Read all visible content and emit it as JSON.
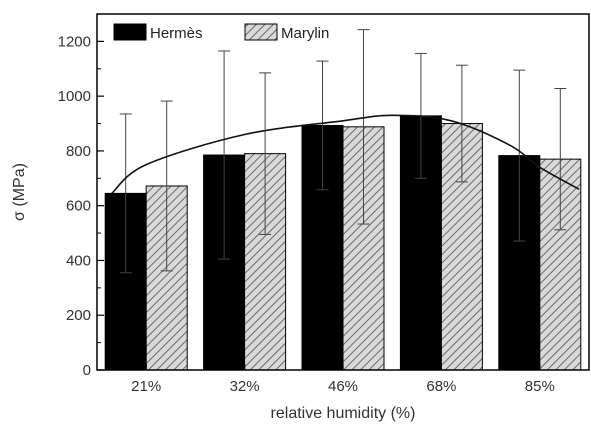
{
  "chart_data": {
    "type": "bar",
    "categories": [
      "21%",
      "32%",
      "46%",
      "68%",
      "85%"
    ],
    "series": [
      {
        "name": "Hermès",
        "values": [
          645,
          785,
          893,
          928,
          783
        ],
        "errors": [
          290,
          380,
          235,
          228,
          312
        ],
        "color": "#000000",
        "pattern": "solid"
      },
      {
        "name": "Marylin",
        "values": [
          672,
          790,
          888,
          900,
          770
        ],
        "errors": [
          310,
          295,
          355,
          213,
          258
        ],
        "color": "#bfbfbf",
        "pattern": "hatched"
      }
    ],
    "trend_line": {
      "points": [
        [
          0.15,
          645
        ],
        [
          0.5,
          750
        ],
        [
          1.5,
          860
        ],
        [
          2.5,
          910
        ],
        [
          3.0,
          930
        ],
        [
          3.6,
          910
        ],
        [
          4.2,
          820
        ],
        [
          4.5,
          740
        ],
        [
          4.9,
          660
        ]
      ]
    },
    "title": "",
    "xlabel": "relative humidity (%)",
    "ylabel": "σ (MPa)",
    "ylim": [
      0,
      1300
    ],
    "yticks": [
      0,
      200,
      400,
      600,
      800,
      1000,
      1200
    ],
    "grid": false,
    "legend_position": "top-left"
  }
}
